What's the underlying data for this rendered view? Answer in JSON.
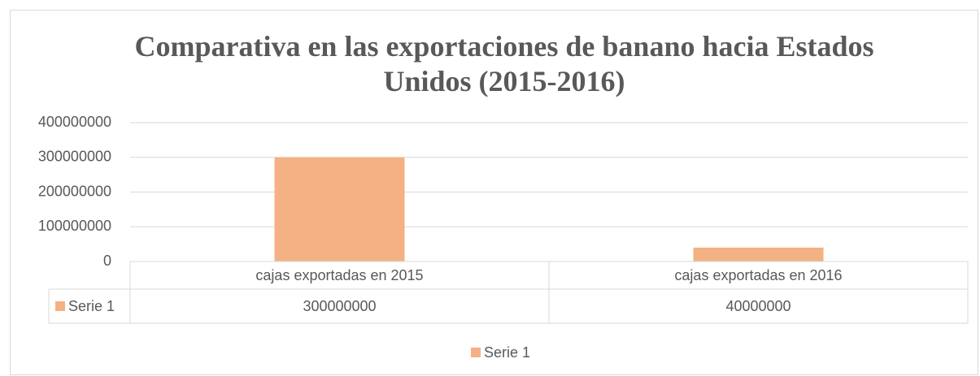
{
  "chart_data": {
    "type": "bar",
    "title": "Comparativa en las exportaciones de banano hacia Estados Unidos (2015-2016)",
    "categories": [
      "cajas exportadas en 2015",
      "cajas exportadas en 2016"
    ],
    "series": [
      {
        "name": "Serie 1",
        "color": "#f4b183",
        "values": [
          300000000,
          40000000
        ]
      }
    ],
    "ylim": [
      0,
      400000000
    ],
    "yticks": [
      0,
      100000000,
      200000000,
      300000000,
      400000000
    ],
    "grid": true,
    "legend": "bottom",
    "data_table": true
  }
}
